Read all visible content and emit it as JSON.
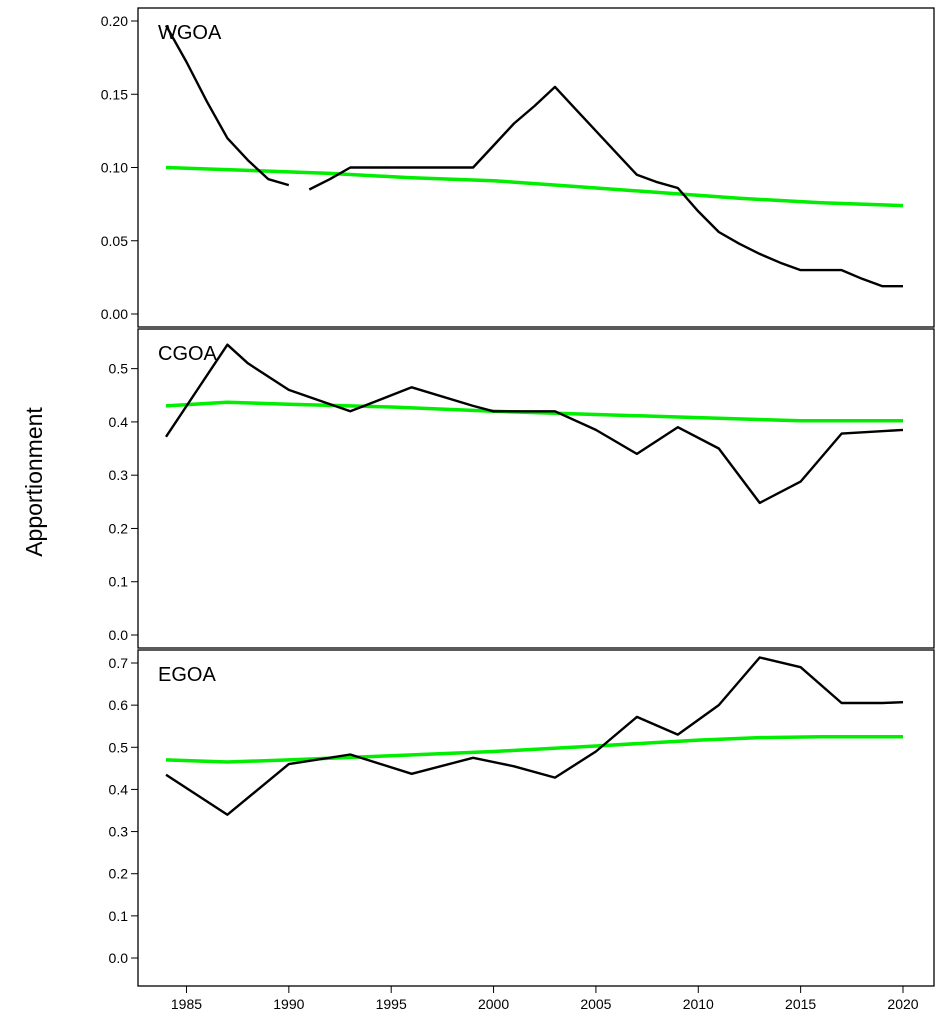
{
  "chart_data": {
    "type": "line",
    "ylabel": "Apportionment",
    "xlabel": "",
    "x_ticks": [
      "1985",
      "1990",
      "1995",
      "2000",
      "2005",
      "2010",
      "2015",
      "2020"
    ],
    "xlim": [
      1984,
      2020
    ],
    "colors": {
      "observed": "#000000",
      "smoothed": "#00ee00"
    },
    "panels": [
      {
        "label": "WGOA",
        "ylim": [
          0,
          0.2
        ],
        "y_ticks": [
          "0.00",
          "0.05",
          "0.10",
          "0.15",
          "0.20"
        ],
        "series": [
          {
            "role": "observed",
            "segments": [
              {
                "x": [
                  1984,
                  1985,
                  1986,
                  1987,
                  1988,
                  1989,
                  1990
                ],
                "y": [
                  0.197,
                  0.172,
                  0.145,
                  0.12,
                  0.105,
                  0.092,
                  0.088
                ]
              },
              {
                "x": [
                  1991,
                  1992,
                  1993,
                  1994,
                  1995,
                  1996,
                  1997,
                  1998,
                  1999,
                  2000,
                  2001,
                  2002,
                  2003,
                  2004,
                  2005,
                  2006,
                  2007,
                  2008,
                  2009,
                  2010,
                  2011,
                  2012,
                  2013,
                  2014,
                  2015,
                  2016,
                  2017,
                  2018,
                  2019,
                  2020
                ],
                "y": [
                  0.085,
                  0.092,
                  0.1,
                  0.1,
                  0.1,
                  0.1,
                  0.1,
                  0.1,
                  0.1,
                  0.115,
                  0.13,
                  0.142,
                  0.155,
                  0.14,
                  0.125,
                  0.11,
                  0.095,
                  0.09,
                  0.086,
                  0.07,
                  0.056,
                  0.048,
                  0.041,
                  0.035,
                  0.03,
                  0.03,
                  0.03,
                  0.024,
                  0.019,
                  0.019
                ]
              }
            ]
          },
          {
            "role": "smoothed",
            "segments": [
              {
                "x": [
                  1984,
                  1988,
                  1992,
                  1996,
                  2000,
                  2004,
                  2008,
                  2012,
                  2016,
                  2020
                ],
                "y": [
                  0.1,
                  0.098,
                  0.096,
                  0.093,
                  0.091,
                  0.087,
                  0.083,
                  0.079,
                  0.076,
                  0.074
                ]
              }
            ]
          }
        ]
      },
      {
        "label": "CGOA",
        "ylim": [
          0,
          0.55
        ],
        "y_ticks": [
          "0.0",
          "0.1",
          "0.2",
          "0.3",
          "0.4",
          "0.5"
        ],
        "series": [
          {
            "role": "observed",
            "segments": [
              {
                "x": [
                  1984,
                  1987,
                  1988,
                  1990,
                  1993,
                  1996,
                  1999,
                  2000,
                  2003,
                  2005,
                  2007,
                  2009,
                  2011,
                  2013,
                  2015,
                  2017,
                  2020
                ],
                "y": [
                  0.372,
                  0.545,
                  0.51,
                  0.46,
                  0.42,
                  0.465,
                  0.43,
                  0.42,
                  0.42,
                  0.385,
                  0.34,
                  0.39,
                  0.35,
                  0.248,
                  0.288,
                  0.378,
                  0.385
                ]
              }
            ]
          },
          {
            "role": "smoothed",
            "segments": [
              {
                "x": [
                  1984,
                  1987,
                  1990,
                  1995,
                  2000,
                  2005,
                  2010,
                  2015,
                  2020
                ],
                "y": [
                  0.43,
                  0.437,
                  0.433,
                  0.428,
                  0.42,
                  0.414,
                  0.408,
                  0.402,
                  0.402
                ]
              }
            ]
          }
        ]
      },
      {
        "label": "EGOA",
        "ylim": [
          0,
          0.7
        ],
        "y_ticks": [
          "0.0",
          "0.1",
          "0.2",
          "0.3",
          "0.4",
          "0.5",
          "0.6",
          "0.7"
        ],
        "series": [
          {
            "role": "observed",
            "segments": [
              {
                "x": [
                  1984,
                  1987,
                  1990,
                  1993,
                  1996,
                  1999,
                  2001,
                  2003,
                  2005,
                  2007,
                  2009,
                  2011,
                  2013,
                  2015,
                  2017,
                  2019,
                  2020
                ],
                "y": [
                  0.435,
                  0.34,
                  0.46,
                  0.483,
                  0.437,
                  0.475,
                  0.455,
                  0.428,
                  0.49,
                  0.572,
                  0.53,
                  0.6,
                  0.713,
                  0.69,
                  0.605,
                  0.605,
                  0.607
                ]
              }
            ]
          },
          {
            "role": "smoothed",
            "segments": [
              {
                "x": [
                  1984,
                  1987,
                  1990,
                  1995,
                  2000,
                  2005,
                  2010,
                  2013,
                  2016,
                  2020
                ],
                "y": [
                  0.47,
                  0.465,
                  0.47,
                  0.48,
                  0.49,
                  0.503,
                  0.517,
                  0.523,
                  0.525,
                  0.525
                ]
              }
            ]
          }
        ]
      }
    ]
  }
}
